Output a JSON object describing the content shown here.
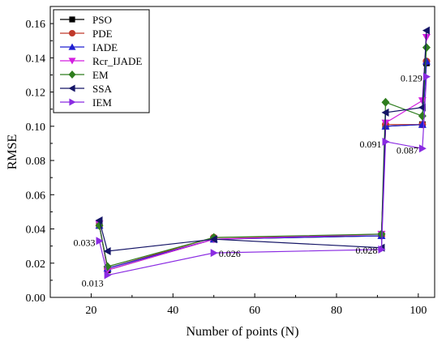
{
  "chart_data": {
    "type": "line",
    "title": "",
    "xlabel": "Number of points (N)",
    "ylabel": "RMSE",
    "xlim": [
      10,
      104
    ],
    "ylim": [
      0.0,
      0.17
    ],
    "xticks": [
      20,
      40,
      60,
      80,
      100
    ],
    "yticks": [
      0.0,
      0.02,
      0.04,
      0.06,
      0.08,
      0.1,
      0.12,
      0.14,
      0.16
    ],
    "xtick_labels": [
      "20",
      "40",
      "60",
      "80",
      "100"
    ],
    "ytick_labels": [
      "0.00",
      "0.02",
      "0.04",
      "0.06",
      "0.08",
      "0.10",
      "0.12",
      "0.14",
      "0.16"
    ],
    "x": [
      22,
      24,
      50,
      91,
      92,
      101,
      102
    ],
    "legend_position": "top-left",
    "grid": false,
    "series": [
      {
        "name": "PSO",
        "marker": "square",
        "color": "#000000",
        "values": [
          0.042,
          0.016,
          0.034,
          0.036,
          0.1,
          0.101,
          0.137
        ]
      },
      {
        "name": "PDE",
        "marker": "circle",
        "color": "#c0392b",
        "values": [
          0.042,
          0.017,
          0.035,
          0.036,
          0.101,
          0.101,
          0.138
        ]
      },
      {
        "name": "IADE",
        "marker": "triangle-up",
        "color": "#1f1fd1",
        "values": [
          0.042,
          0.017,
          0.034,
          0.036,
          0.1,
          0.101,
          0.138
        ]
      },
      {
        "name": "Rcr_IJADE",
        "marker": "triangle-down",
        "color": "#d31fe0",
        "values": [
          0.043,
          0.016,
          0.034,
          0.037,
          0.102,
          0.115,
          0.152
        ]
      },
      {
        "name": "EM",
        "marker": "diamond",
        "color": "#2e7d1e",
        "values": [
          0.042,
          0.018,
          0.035,
          0.037,
          0.114,
          0.106,
          0.146
        ]
      },
      {
        "name": "SSA",
        "marker": "triangle-left",
        "color": "#141466",
        "values": [
          0.045,
          0.027,
          0.034,
          0.029,
          0.108,
          0.111,
          0.156
        ]
      },
      {
        "name": "IEM",
        "marker": "triangle-right",
        "color": "#8a2be2",
        "values": [
          0.033,
          0.013,
          0.026,
          0.028,
          0.091,
          0.087,
          0.129
        ]
      }
    ],
    "annotations": [
      {
        "text": "0.033",
        "x": 22,
        "y": 0.033
      },
      {
        "text": "0.013",
        "x": 24,
        "y": 0.013
      },
      {
        "text": "0.026",
        "x": 50,
        "y": 0.026
      },
      {
        "text": "0.028",
        "x": 91,
        "y": 0.028
      },
      {
        "text": "0.091",
        "x": 92,
        "y": 0.091
      },
      {
        "text": "0.087",
        "x": 101,
        "y": 0.087
      },
      {
        "text": "0.129",
        "x": 102,
        "y": 0.129
      }
    ]
  }
}
